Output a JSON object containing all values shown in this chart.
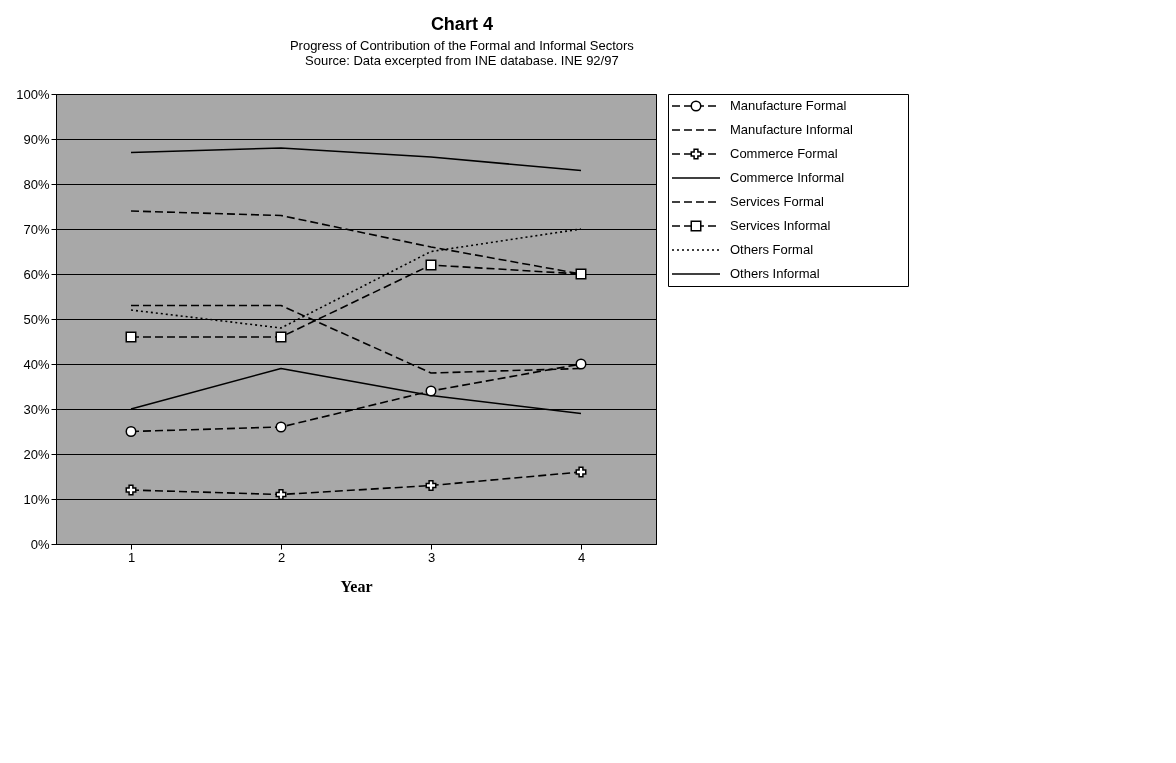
{
  "chart_data": {
    "type": "line",
    "title": "Chart 4",
    "subtitle": "Progress of Contribution of the Formal and Informal Sectors",
    "annotations": [
      "Source: Data excerpted from INE database.  INE 92/97"
    ],
    "xlabel": "Year",
    "categories": [
      "1",
      "2",
      "3",
      "4"
    ],
    "ylim": [
      0,
      100
    ],
    "yticks": [
      {
        "value": 0,
        "label": "0%"
      },
      {
        "value": 10,
        "label": "10%"
      },
      {
        "value": 20,
        "label": "20%"
      },
      {
        "value": 30,
        "label": "30%"
      },
      {
        "value": 40,
        "label": "40%"
      },
      {
        "value": 50,
        "label": "50%"
      },
      {
        "value": 60,
        "label": "60%"
      },
      {
        "value": 70,
        "label": "70%"
      },
      {
        "value": 80,
        "label": "80%"
      },
      {
        "value": 90,
        "label": "90%"
      },
      {
        "value": 100,
        "label": "100%"
      }
    ],
    "grid": "y",
    "legend": "right",
    "series": [
      {
        "name": "Manufacture Formal",
        "color": "#000000",
        "values": [
          25,
          26,
          34,
          40
        ],
        "marker": "circle",
        "line_style": "dashed"
      },
      {
        "name": "Manufacture Informal",
        "color": "#000000",
        "values": [
          74,
          73,
          66,
          60
        ],
        "marker": "none",
        "line_style": "dashed"
      },
      {
        "name": "Commerce Formal",
        "color": "#000000",
        "values": [
          12,
          11,
          13,
          16
        ],
        "marker": "cross",
        "line_style": "dashed"
      },
      {
        "name": "Commerce Informal",
        "color": "#000000",
        "values": [
          87,
          88,
          86,
          83
        ],
        "marker": "none",
        "line_style": "solid"
      },
      {
        "name": "Services Formal",
        "color": "#000000",
        "values": [
          53,
          53,
          38,
          39
        ],
        "marker": "none",
        "line_style": "dashed"
      },
      {
        "name": "Services Informal",
        "color": "#000000",
        "values": [
          46,
          46,
          62,
          60
        ],
        "marker": "square",
        "line_style": "dashed"
      },
      {
        "name": "Others Formal",
        "color": "#000000",
        "values": [
          52,
          48,
          65,
          70
        ],
        "marker": "none",
        "line_style": "dotted"
      },
      {
        "name": "Others Informal",
        "color": "#000000",
        "values": [
          30,
          39,
          33,
          29
        ],
        "marker": "none",
        "line_style": "solid"
      }
    ]
  }
}
